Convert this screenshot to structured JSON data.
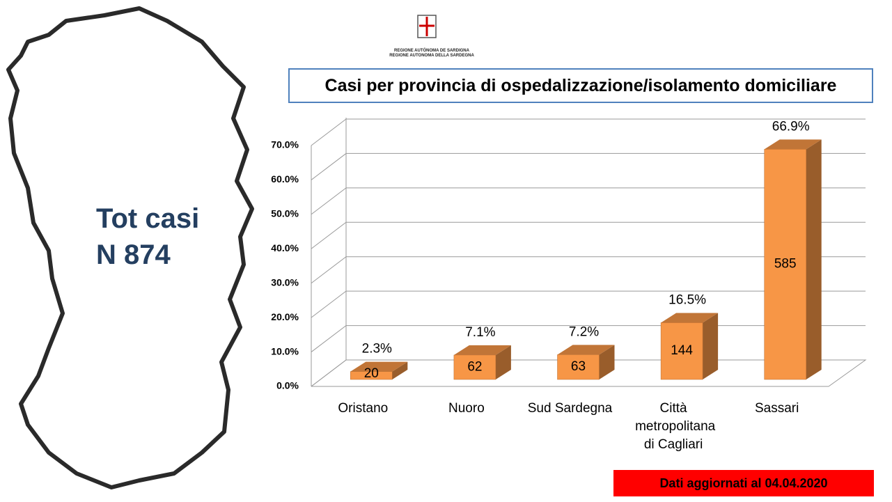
{
  "chart_data": {
    "type": "bar3d",
    "title": "Casi per provincia di ospedalizzazione/isolamento domiciliare",
    "categories": [
      "Oristano",
      "Nuoro",
      "Sud Sardegna",
      "Città metropolitana di Cagliari",
      "Sassari"
    ],
    "values": [
      2.3,
      7.1,
      7.2,
      16.5,
      66.9
    ],
    "value_labels": [
      "2.3%",
      "7.1%",
      "7.2%",
      "16.5%",
      "66.9%"
    ],
    "counts": [
      20,
      62,
      63,
      144,
      585
    ],
    "color": "#f79646",
    "ylim": [
      0,
      70
    ],
    "yticks": [
      {
        "value": 0,
        "label": "0.0%"
      },
      {
        "value": 10,
        "label": "10.0%"
      },
      {
        "value": 20,
        "label": "20.0%"
      },
      {
        "value": 30,
        "label": "30.0%"
      },
      {
        "value": 40,
        "label": "40.0%"
      },
      {
        "value": 50,
        "label": "50.0%"
      },
      {
        "value": 60,
        "label": "60.0%"
      },
      {
        "value": 70,
        "label": "70.0%"
      }
    ],
    "grid": true
  },
  "total": {
    "label": "Tot casi",
    "value": "N 874"
  },
  "logo": {
    "line1": "REGIONE AUTÒNOMA DE SARDIGNA",
    "line2": "REGIONE AUTONOMA DELLA SARDEGNA"
  },
  "footer": "Dati aggiornati al 04.04.2020"
}
